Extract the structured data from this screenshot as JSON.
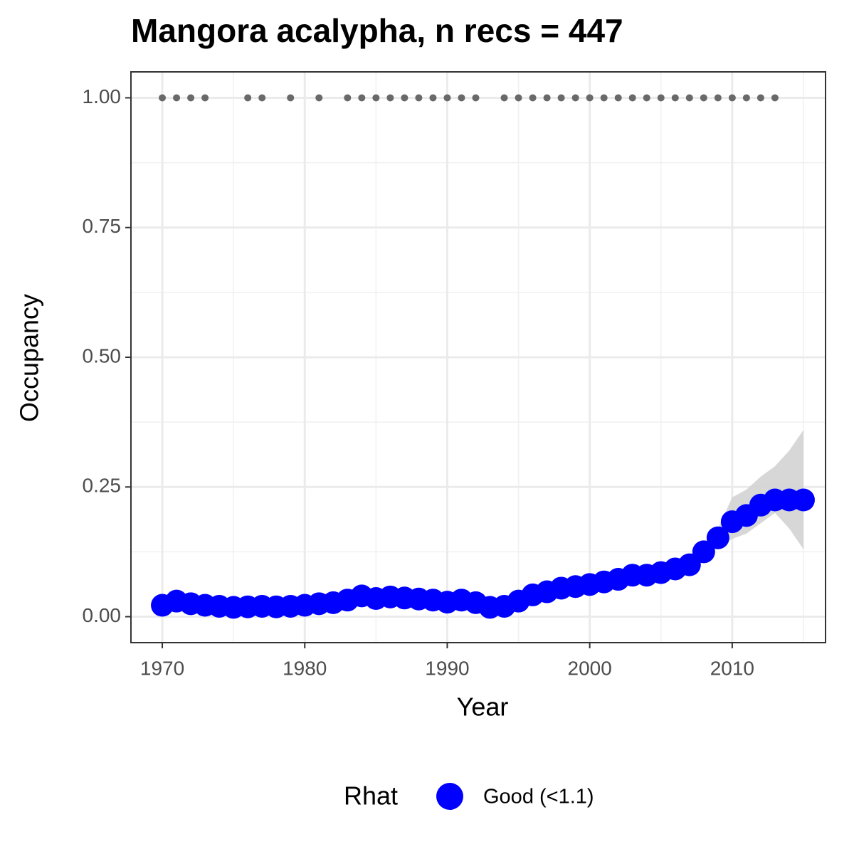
{
  "chart_data": {
    "type": "scatter",
    "title": "Mangora acalypha, n recs = 447",
    "x_label": "Year",
    "y_label": "Occupancy",
    "legend_title": "Rhat",
    "x": [
      1970,
      1971,
      1972,
      1973,
      1974,
      1975,
      1976,
      1977,
      1978,
      1979,
      1980,
      1981,
      1982,
      1983,
      1984,
      1985,
      1986,
      1987,
      1988,
      1989,
      1990,
      1991,
      1992,
      1993,
      1994,
      1995,
      1996,
      1997,
      1998,
      1999,
      2000,
      2001,
      2002,
      2003,
      2004,
      2005,
      2006,
      2007,
      2008,
      2009,
      2010,
      2011,
      2012,
      2013,
      2014,
      2015
    ],
    "series": [
      {
        "name": "Good (<1.1)",
        "color": "#0000ff",
        "values": [
          0.022,
          0.03,
          0.025,
          0.022,
          0.02,
          0.018,
          0.019,
          0.02,
          0.019,
          0.02,
          0.022,
          0.025,
          0.027,
          0.032,
          0.04,
          0.035,
          0.038,
          0.036,
          0.034,
          0.032,
          0.028,
          0.032,
          0.027,
          0.018,
          0.02,
          0.03,
          0.042,
          0.048,
          0.055,
          0.058,
          0.062,
          0.067,
          0.072,
          0.08,
          0.08,
          0.085,
          0.092,
          0.1,
          0.125,
          0.152,
          0.183,
          0.195,
          0.215,
          0.225,
          0.225,
          0.225
        ]
      }
    ],
    "ribbon": {
      "color": "#d3d3d3",
      "lower": [
        0.017,
        0.025,
        0.02,
        0.017,
        0.015,
        0.013,
        0.014,
        0.015,
        0.014,
        0.015,
        0.017,
        0.02,
        0.022,
        0.027,
        0.035,
        0.03,
        0.033,
        0.031,
        0.029,
        0.027,
        0.023,
        0.027,
        0.022,
        0.013,
        0.015,
        0.025,
        0.037,
        0.043,
        0.05,
        0.053,
        0.057,
        0.062,
        0.067,
        0.074,
        0.074,
        0.079,
        0.085,
        0.092,
        0.11,
        0.135,
        0.15,
        0.16,
        0.18,
        0.2,
        0.17,
        0.13
      ],
      "upper": [
        0.027,
        0.035,
        0.03,
        0.027,
        0.025,
        0.023,
        0.024,
        0.025,
        0.024,
        0.025,
        0.027,
        0.03,
        0.032,
        0.037,
        0.045,
        0.04,
        0.043,
        0.041,
        0.039,
        0.037,
        0.033,
        0.037,
        0.032,
        0.023,
        0.025,
        0.035,
        0.047,
        0.053,
        0.06,
        0.063,
        0.067,
        0.072,
        0.077,
        0.086,
        0.086,
        0.091,
        0.099,
        0.108,
        0.14,
        0.17,
        0.23,
        0.245,
        0.27,
        0.29,
        0.32,
        0.36
      ]
    },
    "records": {
      "color": "#696969",
      "x": [
        1970,
        1971,
        1972,
        1973,
        1976,
        1977,
        1979,
        1981,
        1983,
        1984,
        1985,
        1986,
        1987,
        1988,
        1989,
        1990,
        1991,
        1992,
        1994,
        1995,
        1996,
        1997,
        1998,
        1999,
        2000,
        2001,
        2002,
        2003,
        2004,
        2005,
        2006,
        2007,
        2008,
        2009,
        2010,
        2011,
        2012,
        2013
      ],
      "values": [
        1,
        1,
        1,
        1,
        1,
        1,
        1,
        1,
        1,
        1,
        1,
        1,
        1,
        1,
        1,
        1,
        1,
        1,
        1,
        1,
        1,
        1,
        1,
        1,
        1,
        1,
        1,
        1,
        1,
        1,
        1,
        1,
        1,
        1,
        1,
        1,
        1,
        1
      ]
    },
    "xlim": [
      1967.8,
      2016.55
    ],
    "ylim": [
      -0.05,
      1.05
    ],
    "xticks": [
      1970,
      1980,
      1990,
      2000,
      2010
    ],
    "xminorticks": [
      1975,
      1985,
      1995,
      2005,
      2015
    ],
    "yticks": [
      {
        "value": 0,
        "label": "0.00"
      },
      {
        "value": 0.25,
        "label": "0.25"
      },
      {
        "value": 0.5,
        "label": "0.50"
      },
      {
        "value": 0.75,
        "label": "0.75"
      },
      {
        "value": 1,
        "label": "1.00"
      }
    ],
    "yminorticks": [
      0.125,
      0.375,
      0.625,
      0.875
    ],
    "grid": true
  }
}
